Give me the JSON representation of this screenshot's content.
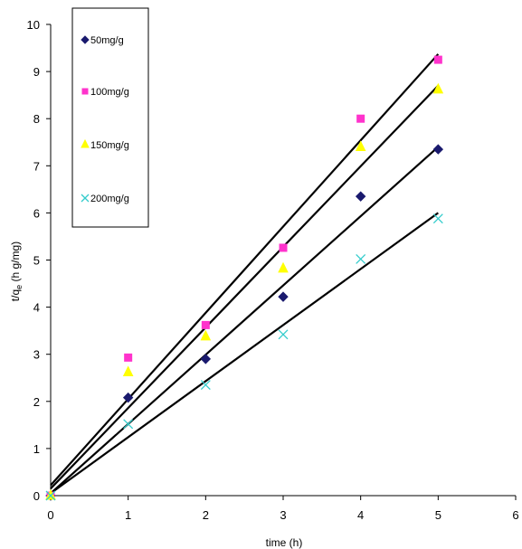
{
  "chart_data": {
    "type": "scatter",
    "title": "",
    "xlabel": "time (h)",
    "ylabel": {
      "main": "t/q",
      "sub": "e",
      "rest": " (h g/mg)"
    },
    "xlim": [
      0,
      6
    ],
    "ylim": [
      0,
      10
    ],
    "xticks": [
      "0",
      "1",
      "2",
      "3",
      "4",
      "5",
      "6"
    ],
    "yticks": [
      "0",
      "1",
      "2",
      "3",
      "4",
      "5",
      "6",
      "7",
      "8",
      "9",
      "10"
    ],
    "grid": false,
    "legend_position": "top-left",
    "series": [
      {
        "name": "50mg/g",
        "marker": "diamond",
        "color": "#1a1a6e",
        "x": [
          0,
          1,
          2,
          3,
          4,
          5
        ],
        "y": [
          0.0,
          2.08,
          2.9,
          4.22,
          6.35,
          7.35
        ],
        "fit": {
          "intercept": 0.05,
          "slope": 1.47
        }
      },
      {
        "name": "100mg/g",
        "marker": "square",
        "color": "#ff33cc",
        "x": [
          0,
          1,
          2,
          3,
          4,
          5
        ],
        "y": [
          0.0,
          2.93,
          3.62,
          5.26,
          8.0,
          9.25
        ],
        "fit": {
          "intercept": 0.22,
          "slope": 1.83
        }
      },
      {
        "name": "150mg/g",
        "marker": "triangle",
        "color": "#ffff00",
        "x": [
          0,
          1,
          2,
          3,
          4,
          5
        ],
        "y": [
          0.0,
          2.62,
          3.38,
          4.82,
          7.4,
          8.62
        ],
        "fit": {
          "intercept": 0.15,
          "slope": 1.71
        }
      },
      {
        "name": "200mg/g",
        "marker": "x",
        "color": "#33cccc",
        "x": [
          0,
          1,
          2,
          3,
          4,
          5
        ],
        "y": [
          0.0,
          1.52,
          2.35,
          3.42,
          5.02,
          5.88
        ],
        "fit": {
          "intercept": 0.05,
          "slope": 1.19
        }
      }
    ]
  }
}
